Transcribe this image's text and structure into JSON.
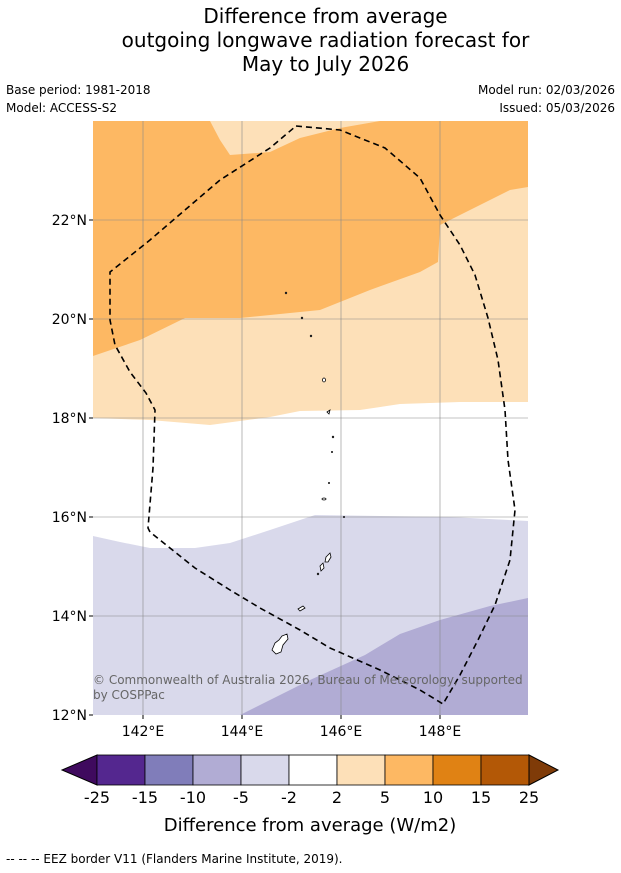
{
  "title": {
    "line1": "Difference from average",
    "line2": "outgoing longwave radiation forecast for",
    "line3": "May to July 2026"
  },
  "meta": {
    "base_period": "Base period: 1981-2018",
    "model": "Model: ACCESS-S2",
    "model_run": "Model run: 02/03/2026",
    "issued": "Issued: 05/03/2026"
  },
  "map": {
    "lon_labels": [
      "142°E",
      "144°E",
      "146°E",
      "148°E"
    ],
    "lat_labels": [
      "22°N",
      "20°N",
      "18°N",
      "16°N",
      "14°N",
      "12°N"
    ],
    "copyright_line1": "© Commonwealth of Australia 2026, Bureau of Meteorology, supported",
    "copyright_line2": "by COSPPac"
  },
  "colorbar": {
    "ticks": [
      "-25",
      "-15",
      "-10",
      "-5",
      "-2",
      "2",
      "5",
      "10",
      "15",
      "25"
    ],
    "colors": [
      "#3f0a5e",
      "#54278f",
      "#807dba",
      "#b1acd4",
      "#d9d9eb",
      "#ffffff",
      "#fde0b8",
      "#fdb863",
      "#e08214",
      "#b35806",
      "#7f3b08"
    ],
    "label": "Difference from average (W/m2)"
  },
  "footer": {
    "legend": "--  --  -- EEZ border V11 (Flanders Marine Institute, 2019)."
  }
}
